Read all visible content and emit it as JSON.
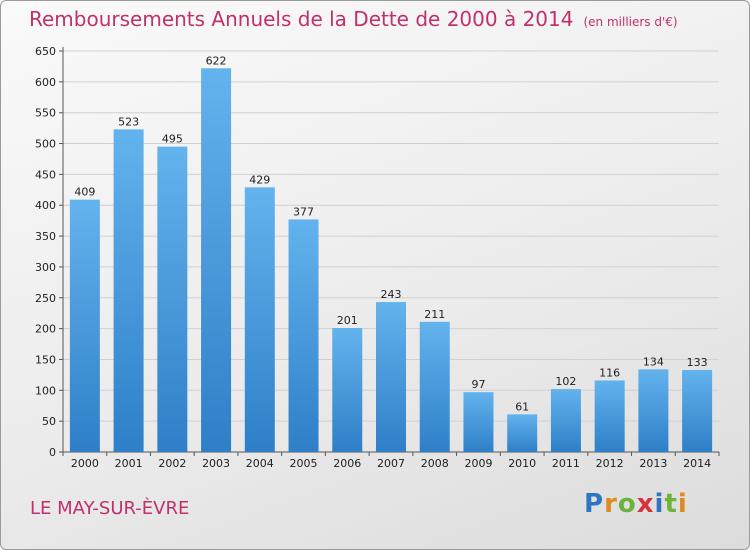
{
  "title": "Remboursements Annuels de la Dette de 2000 à 2014",
  "unit_note": "(en milliers d'€)",
  "place": "LE MAY-SUR-ÈVRE",
  "logo": "Proxiti",
  "colors": {
    "title": "#c0306e",
    "bar_top": "#63b3ee",
    "bar_bottom": "#2f7fc8",
    "grid": "#d0d0d0"
  },
  "chart_data": {
    "type": "bar",
    "title": "Remboursements Annuels de la Dette de 2000 à 2014",
    "xlabel": "",
    "ylabel": "",
    "categories": [
      "2000",
      "2001",
      "2002",
      "2003",
      "2004",
      "2005",
      "2006",
      "2007",
      "2008",
      "2009",
      "2010",
      "2011",
      "2012",
      "2013",
      "2014"
    ],
    "values": [
      409,
      523,
      495,
      622,
      429,
      377,
      201,
      243,
      211,
      97,
      61,
      102,
      116,
      134,
      133
    ],
    "ylim": [
      0,
      650
    ],
    "yticks": [
      0,
      50,
      100,
      150,
      200,
      250,
      300,
      350,
      400,
      450,
      500,
      550,
      600,
      650
    ],
    "grid": true
  }
}
